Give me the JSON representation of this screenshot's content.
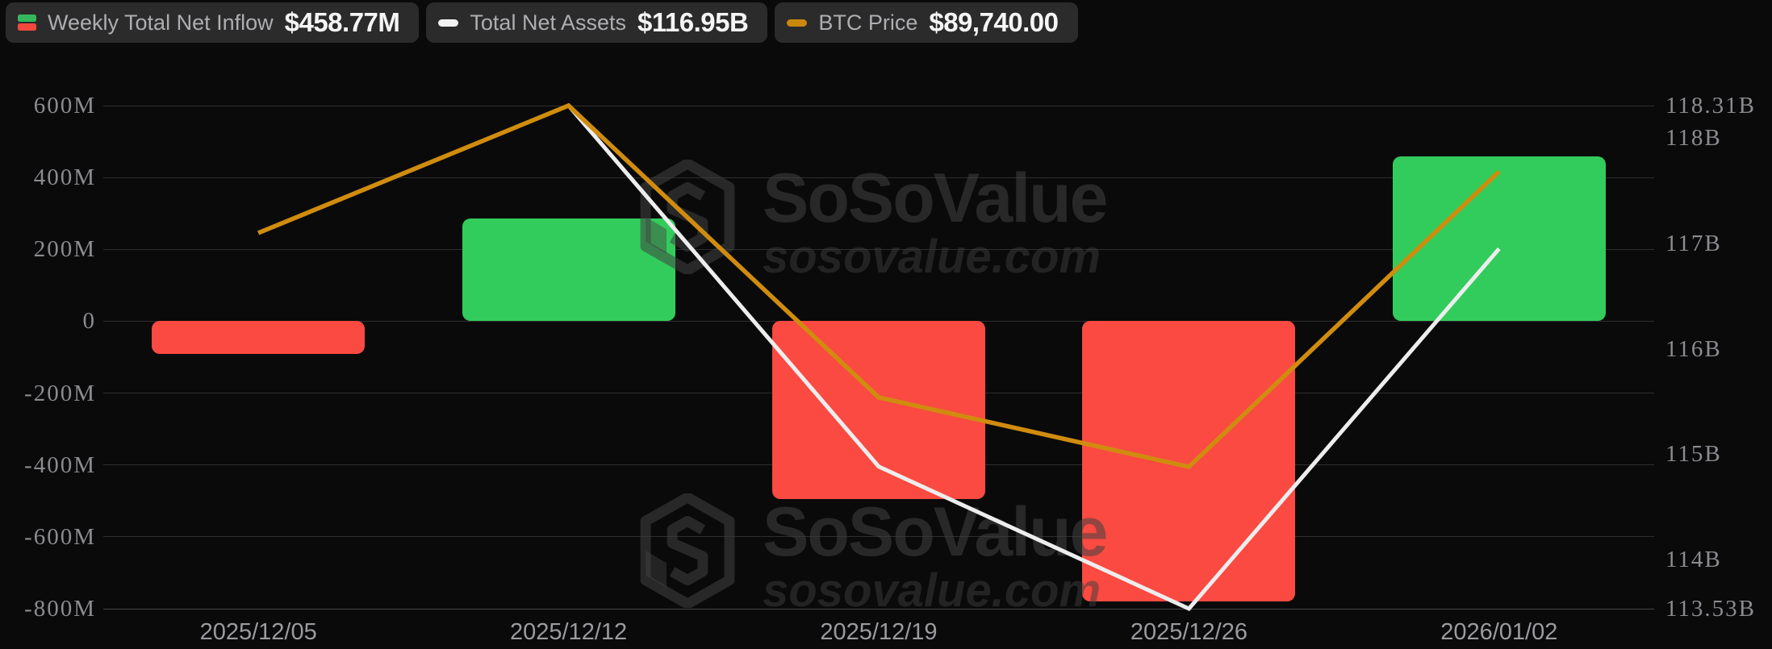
{
  "page": {
    "background": "#0A0A0B"
  },
  "legend": {
    "pills": [
      {
        "id": "weekly-net-inflow",
        "label": "Weekly Total Net Inflow",
        "value": "$458.77M",
        "icon": "stacked-green-red-bars-icon",
        "icon_top_color": "#35B85C",
        "icon_bottom_color": "#F4483C"
      },
      {
        "id": "total-net-assets",
        "label": "Total Net Assets",
        "value": "$116.95B",
        "icon": "white-dash-icon",
        "icon_color": "#F2F2F2"
      },
      {
        "id": "btc-price",
        "label": "BTC Price",
        "value": "$89,740.00",
        "icon": "gold-dash-icon",
        "icon_color": "#C9880C"
      }
    ]
  },
  "watermark": {
    "brand": "SoSoValue",
    "domain": "sosovalue.com"
  },
  "chart_data": {
    "type": "combo",
    "categories": [
      "2025/12/05",
      "2025/12/12",
      "2025/12/19",
      "2025/12/26",
      "2026/01/02"
    ],
    "series": [
      {
        "name": "Weekly Total Net Inflow",
        "type": "bar",
        "axis": "left",
        "unit": "USD millions",
        "values": [
          -90,
          285,
          -495,
          -780,
          458.77
        ],
        "positive_color": "#32CC5C",
        "negative_color": "#FA4A41",
        "latest_label": "$458.77M"
      },
      {
        "name": "Total Net Assets",
        "type": "line",
        "axis": "right",
        "unit": "USD billions",
        "values": [
          117.1,
          118.31,
          114.88,
          113.53,
          116.95
        ],
        "color": "#EDEDED",
        "latest_label": "$116.95B"
      },
      {
        "name": "BTC Price",
        "type": "line",
        "axis": "hidden",
        "unit": "USD",
        "color": "#D08C0E",
        "latest_label": "$89,740.00",
        "y_fractions_from_top": [
          0.253,
          0.0,
          0.58,
          0.718,
          0.131
        ],
        "note": "price axis not displayed; fractions of plot height read from chart, only latest value labeled"
      }
    ],
    "left_axis": {
      "min": -800,
      "max": 600,
      "tick_values": [
        600,
        400,
        200,
        0,
        -200,
        -400,
        -600,
        -800
      ],
      "tick_labels": [
        "600M",
        "400M",
        "200M",
        "0",
        "-200M",
        "-400M",
        "-600M",
        "-800M"
      ]
    },
    "right_axis": {
      "min": 113.53,
      "max": 118.31,
      "tick_values": [
        118.31,
        118,
        117,
        116,
        115,
        114,
        113.53
      ],
      "tick_labels": [
        "118.31B",
        "118B",
        "117B",
        "116B",
        "115B",
        "114B",
        "113.53B"
      ]
    },
    "grid": "horizontal gridlines on",
    "legend_position": "top-left",
    "title": ""
  },
  "colors": {
    "background": "#0A0A0B",
    "pill_background": "#2B2B2B",
    "gridline": "#2E2E2E",
    "axis_text": "#8B8B90",
    "bar_positive": "#32CC5C",
    "bar_negative": "#FA4A41",
    "net_assets_line": "#EDEDED",
    "btc_line": "#D08C0E"
  }
}
